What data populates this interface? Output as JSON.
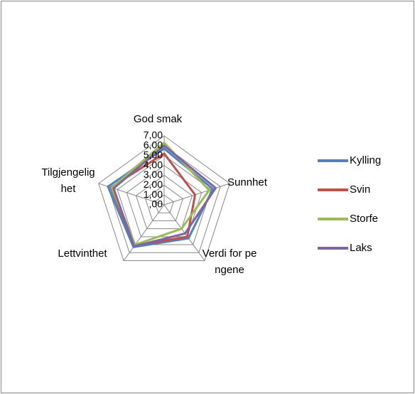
{
  "chart_data": {
    "type": "radar",
    "categories": [
      "God smak",
      "Sunnhet",
      "Verdi for pengene",
      "Lettvinthet",
      "Tilgjengelighet"
    ],
    "series": [
      {
        "name": "Kylling",
        "color": "#4f81bd",
        "values": [
          5.7,
          5.2,
          4.2,
          5.3,
          6.0
        ]
      },
      {
        "name": "Svin",
        "color": "#c0504d",
        "values": [
          5.2,
          3.3,
          4.0,
          5.1,
          5.7
        ]
      },
      {
        "name": "Storfe",
        "color": "#9bbb59",
        "values": [
          6.3,
          4.8,
          3.0,
          5.0,
          5.6
        ]
      },
      {
        "name": "Laks",
        "color": "#8064a2",
        "values": [
          6.0,
          5.5,
          3.6,
          5.2,
          5.4
        ]
      }
    ],
    "ylim": [
      0,
      7
    ],
    "yticks": [
      {
        "value": 0,
        "label": ",00"
      },
      {
        "value": 1,
        "label": "1,00"
      },
      {
        "value": 2,
        "label": "2,00"
      },
      {
        "value": 3,
        "label": "3,00"
      },
      {
        "value": 4,
        "label": "4,00"
      },
      {
        "value": 5,
        "label": "5,00"
      },
      {
        "value": 6,
        "label": "6,00"
      },
      {
        "value": 7,
        "label": "7,00"
      }
    ],
    "grid": true,
    "legend": "right"
  }
}
